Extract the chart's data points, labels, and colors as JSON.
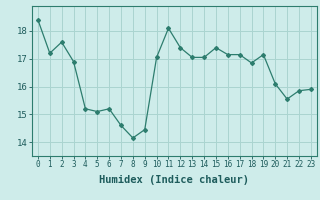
{
  "x": [
    0,
    1,
    2,
    3,
    4,
    5,
    6,
    7,
    8,
    9,
    10,
    11,
    12,
    13,
    14,
    15,
    16,
    17,
    18,
    19,
    20,
    21,
    22,
    23
  ],
  "y": [
    18.4,
    17.2,
    17.6,
    16.9,
    15.2,
    15.1,
    15.2,
    14.6,
    14.15,
    14.45,
    17.05,
    18.1,
    17.4,
    17.05,
    17.05,
    17.4,
    17.15,
    17.15,
    16.85,
    17.15,
    16.1,
    15.55,
    15.85,
    15.9
  ],
  "line_color": "#2d7d6e",
  "marker": "D",
  "marker_size": 2.0,
  "bg_color": "#ceecea",
  "grid_color": "#aad4d0",
  "xlabel": "Humidex (Indice chaleur)",
  "xlabel_fontsize": 7.5,
  "ylim": [
    13.5,
    18.9
  ],
  "yticks": [
    14,
    15,
    16,
    17,
    18
  ],
  "xticks": [
    0,
    1,
    2,
    3,
    4,
    5,
    6,
    7,
    8,
    9,
    10,
    11,
    12,
    13,
    14,
    15,
    16,
    17,
    18,
    19,
    20,
    21,
    22,
    23
  ],
  "spine_color": "#2d7d6e",
  "font_color": "#1e5c5c",
  "tick_fontsize": 5.5,
  "ytick_fontsize": 6.5
}
